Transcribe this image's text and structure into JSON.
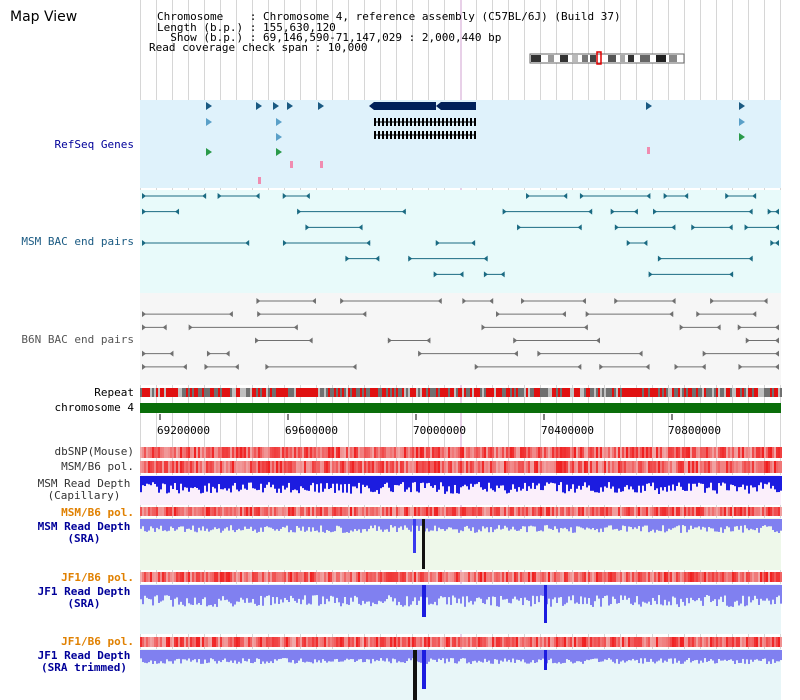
{
  "view_title": "Map View",
  "info": {
    "chromosome": "Chromosome    : Chromosome 4, reference assembly (C57BL/6J) (Build 37)",
    "length": "Length (b.p.) : 155,630,120",
    "show": "  Show (b.p.) : 69,146,590-71,147,029 : 2,000,440 bp",
    "coverage": "Read coverage check span : 10,000"
  },
  "tracks": {
    "refseq": "RefSeq Genes",
    "msm_bac": "MSM BAC end pairs",
    "b6n_bac": "B6N BAC end pairs",
    "repeat": "Repeat",
    "chromosome": "chromosome 4",
    "dbsnp": "dbSNP(Mouse)",
    "msm_b6_pol": "MSM/B6 pol.",
    "msm_depth_cap": "MSM Read Depth\n(Capillary)",
    "msm_b6_pol2": "MSM/B6 pol.",
    "msm_depth_sra": "MSM Read Depth\n(SRA)",
    "jf1_b6_pol": "JF1/B6 pol.",
    "jf1_depth_sra": "JF1 Read Depth\n(SRA)",
    "jf1_b6_pol2": "JF1/B6 pol.",
    "jf1_depth_trim": "JF1 Read Depth\n(SRA trimmed)"
  },
  "axis_ticks": [
    "69200000",
    "69600000",
    "70000000",
    "70400000",
    "70800000"
  ],
  "colors": {
    "refseq_bg": "#dff2fb",
    "bac_bg": "#e8fafa",
    "b6n_bg": "#f6f6f6",
    "msm_label": "#1a5a82",
    "label_blue": "#000099",
    "label_orange": "#e08000",
    "chromosome_bar": "#0a6e0a",
    "gene_dark": "#00205a",
    "depth_blue": "#1c1ce0",
    "depth_light": "#8080f0"
  }
}
